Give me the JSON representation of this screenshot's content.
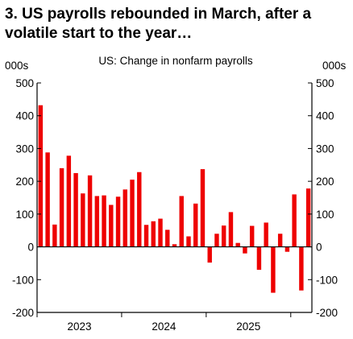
{
  "page": {
    "title": "3. US payrolls rebounded in March, after a volatile start to the year…"
  },
  "colors": {
    "bar": "#ee0000",
    "axis": "#000000",
    "background": "#ffffff"
  },
  "chart_data": {
    "type": "bar",
    "title": "US: Change in nonfarm payrolls",
    "ylabel_left": "000s",
    "ylabel_right": "000s",
    "ylim": [
      -200,
      500
    ],
    "yticks": [
      -200,
      -100,
      0,
      100,
      200,
      300,
      400,
      500
    ],
    "year_labels": [
      "2023",
      "2024",
      "2025"
    ],
    "categories": [
      "2023-01",
      "2023-02",
      "2023-03",
      "2023-04",
      "2023-05",
      "2023-06",
      "2023-07",
      "2023-08",
      "2023-09",
      "2023-10",
      "2023-11",
      "2023-12",
      "2024-01",
      "2024-02",
      "2024-03",
      "2024-04",
      "2024-05",
      "2024-06",
      "2024-07",
      "2024-08",
      "2024-09",
      "2024-10",
      "2024-11",
      "2024-12",
      "2025-01",
      "2025-02",
      "2025-03",
      "2025-04",
      "2025-05",
      "2025-06",
      "2025-07",
      "2025-08",
      "2025-09",
      "2025-10",
      "2025-11",
      "2025-12",
      "2026-01",
      "2026-02",
      "2026-03"
    ],
    "values": [
      432,
      288,
      68,
      240,
      278,
      225,
      163,
      218,
      155,
      157,
      128,
      153,
      175,
      205,
      228,
      67,
      78,
      86,
      52,
      8,
      155,
      32,
      132,
      237,
      -48,
      40,
      65,
      106,
      12,
      -20,
      64,
      -70,
      74,
      -140,
      40,
      -15,
      160,
      -133,
      178
    ],
    "grid": false,
    "legend": "none"
  }
}
